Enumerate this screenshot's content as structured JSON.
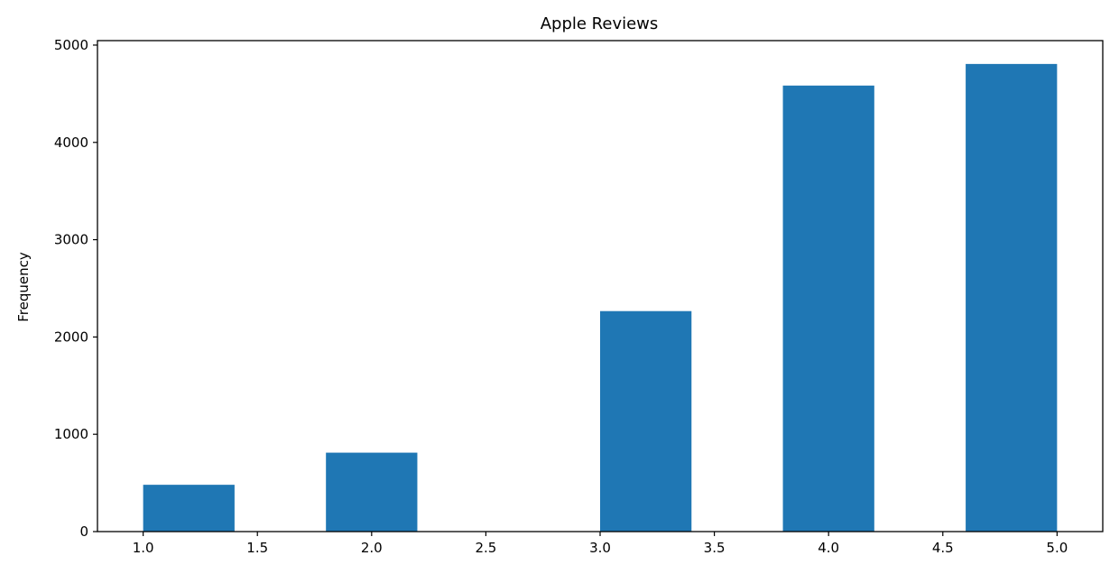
{
  "chart_data": {
    "type": "bar",
    "title": "Apple Reviews",
    "xlabel": "",
    "ylabel": "Frequency",
    "bin_edges": [
      1.0,
      1.4,
      1.8,
      2.2,
      2.6,
      3.0,
      3.4,
      3.8,
      4.2,
      4.6,
      5.0
    ],
    "values": [
      481,
      0,
      811,
      0,
      0,
      2266,
      0,
      4584,
      0,
      4806
    ],
    "xlim": [
      0.8,
      5.2
    ],
    "ylim": [
      0,
      5046
    ],
    "xticks": [
      "1.0",
      "1.5",
      "2.0",
      "2.5",
      "3.0",
      "3.5",
      "4.0",
      "4.5",
      "5.0"
    ],
    "yticks": [
      "0",
      "1000",
      "2000",
      "3000",
      "4000",
      "5000"
    ],
    "bar_color": "#1f77b4",
    "grid": false,
    "legend": "none"
  }
}
